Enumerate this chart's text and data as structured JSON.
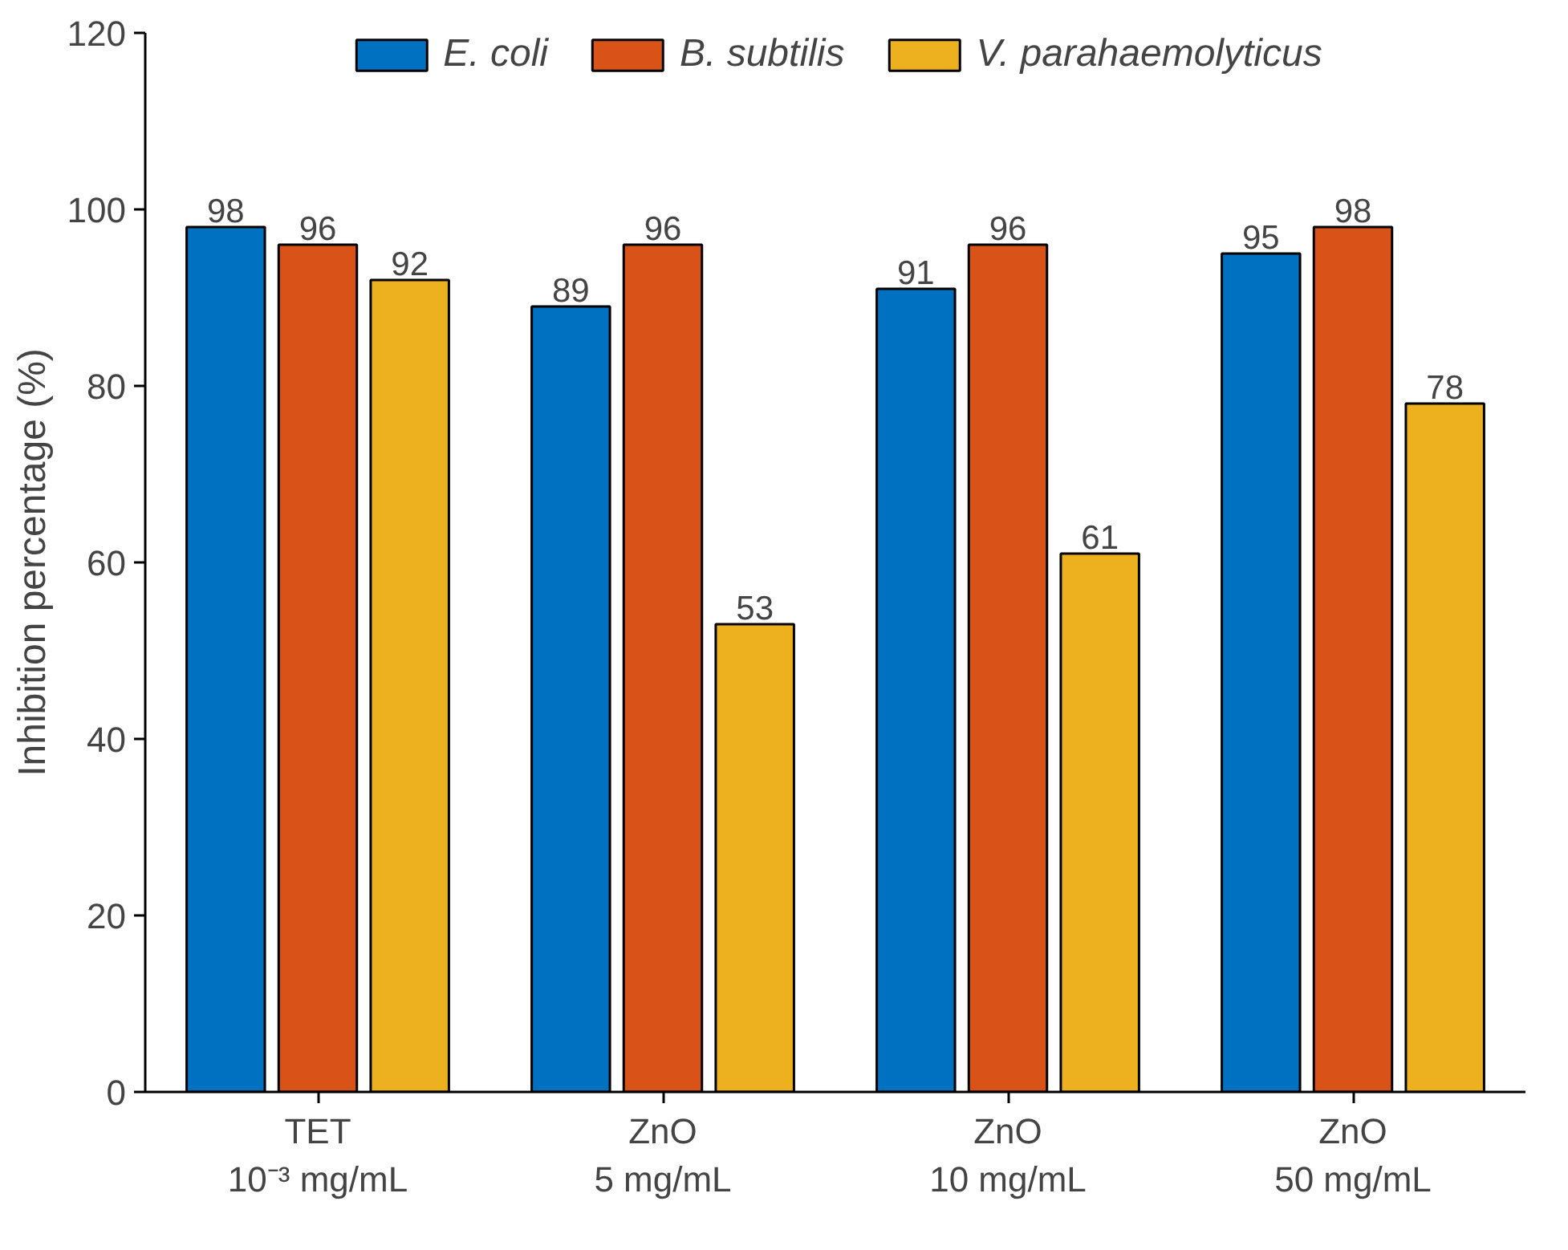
{
  "chart_data": {
    "type": "bar",
    "ylabel": "Inhibition percentage (%)",
    "categories": [
      "TET\n10⁻³ mg/mL",
      "ZnO\n5 mg/mL",
      "ZnO\n10 mg/mL",
      "ZnO\n50 mg/mL"
    ],
    "series": [
      {
        "name": "E. coli",
        "color": "#0070c0",
        "values": [
          98,
          89,
          91,
          95
        ]
      },
      {
        "name": "B. subtilis",
        "color": "#d95319",
        "values": [
          96,
          96,
          96,
          98
        ]
      },
      {
        "name": "V. parahaemolyticus",
        "color": "#edb120",
        "values": [
          92,
          53,
          61,
          78
        ]
      }
    ],
    "ylim": [
      0,
      120
    ],
    "yticks": [
      0,
      20,
      40,
      60,
      80,
      100,
      120
    ],
    "grid": false,
    "legend": "top",
    "data_labels": true
  }
}
